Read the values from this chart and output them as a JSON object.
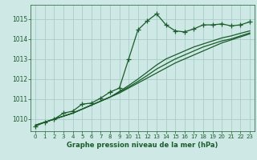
{
  "title": "Graphe pression niveau de la mer (hPa)",
  "background_color": "#cde8e5",
  "grid_color": "#a8cdc8",
  "line_color": "#1a5c2a",
  "x_values": [
    0,
    1,
    2,
    3,
    4,
    5,
    6,
    7,
    8,
    9,
    10,
    11,
    12,
    13,
    14,
    15,
    16,
    17,
    18,
    19,
    20,
    21,
    22,
    23
  ],
  "main_line": [
    1009.65,
    1009.85,
    1010.0,
    1010.3,
    1010.4,
    1010.75,
    1010.8,
    1011.05,
    1011.35,
    1011.55,
    1013.0,
    1014.45,
    1014.9,
    1015.25,
    1014.7,
    1014.4,
    1014.35,
    1014.5,
    1014.7,
    1014.7,
    1014.75,
    1014.65,
    1014.7,
    1014.85
  ],
  "smooth_line1": [
    1009.7,
    1009.85,
    1010.0,
    1010.15,
    1010.3,
    1010.5,
    1010.7,
    1010.9,
    1011.1,
    1011.3,
    1011.55,
    1011.8,
    1012.05,
    1012.3,
    1012.55,
    1012.8,
    1013.0,
    1013.2,
    1013.4,
    1013.6,
    1013.8,
    1013.95,
    1014.1,
    1014.25
  ],
  "smooth_line2": [
    1009.7,
    1009.85,
    1010.0,
    1010.15,
    1010.3,
    1010.5,
    1010.7,
    1010.9,
    1011.1,
    1011.35,
    1011.6,
    1011.88,
    1012.18,
    1012.5,
    1012.75,
    1013.0,
    1013.2,
    1013.4,
    1013.6,
    1013.75,
    1013.9,
    1014.0,
    1014.15,
    1014.3
  ],
  "smooth_line3": [
    1009.7,
    1009.85,
    1010.0,
    1010.15,
    1010.3,
    1010.5,
    1010.7,
    1010.9,
    1011.1,
    1011.38,
    1011.68,
    1012.0,
    1012.35,
    1012.7,
    1013.0,
    1013.2,
    1013.4,
    1013.6,
    1013.75,
    1013.9,
    1014.05,
    1014.15,
    1014.28,
    1014.4
  ],
  "ylim": [
    1009.4,
    1015.7
  ],
  "yticks": [
    1010,
    1011,
    1012,
    1013,
    1014,
    1015
  ],
  "xticks": [
    0,
    1,
    2,
    3,
    4,
    5,
    6,
    7,
    8,
    9,
    10,
    11,
    12,
    13,
    14,
    15,
    16,
    17,
    18,
    19,
    20,
    21,
    22,
    23
  ]
}
